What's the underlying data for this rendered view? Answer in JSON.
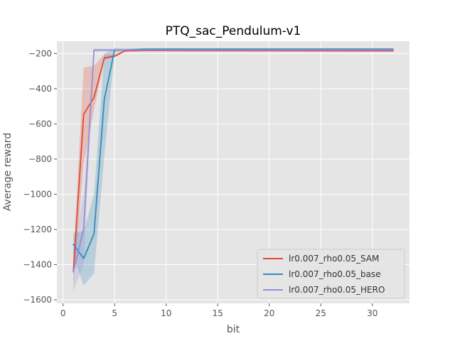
{
  "chart_data": {
    "type": "line",
    "title": "PTQ_sac_Pendulum-v1",
    "xlabel": "bit",
    "ylabel": "Average reward",
    "xlim": [
      -0.6,
      33.6
    ],
    "ylim": [
      -1620,
      -130
    ],
    "xticks": [
      0,
      5,
      10,
      15,
      20,
      25,
      30
    ],
    "yticks": [
      -1600,
      -1400,
      -1200,
      -1000,
      -800,
      -600,
      -400,
      -200
    ],
    "xtick_labels": [
      "0",
      "5",
      "10",
      "15",
      "20",
      "25",
      "30"
    ],
    "ytick_labels": [
      "−1600",
      "−1400",
      "−1200",
      "−1000",
      "−800",
      "−600",
      "−400",
      "−200"
    ],
    "grid": true,
    "legend_position": "lower-right",
    "series": [
      {
        "name": "lr0.007_rho0.05_SAM",
        "color": "#E24A33",
        "x": [
          1,
          2,
          3,
          4,
          5,
          6,
          8,
          32
        ],
        "y": [
          -1440,
          -545,
          -450,
          -225,
          -215,
          -185,
          -183,
          -185
        ],
        "lower": [
          -1520,
          -830,
          -520,
          -235,
          -222,
          -190,
          -188,
          -190
        ],
        "upper": [
          -1360,
          -280,
          -270,
          -205,
          -205,
          -180,
          -178,
          -180
        ]
      },
      {
        "name": "lr0.007_rho0.05_base",
        "color": "#348ABD",
        "x": [
          1,
          2,
          3,
          4,
          5,
          6,
          8,
          32
        ],
        "y": [
          -1285,
          -1365,
          -1225,
          -460,
          -180,
          -180,
          -175,
          -175
        ],
        "lower": [
          -1350,
          -1520,
          -1450,
          -780,
          -195,
          -185,
          -180,
          -180
        ],
        "upper": [
          -1220,
          -1210,
          -1000,
          -200,
          -170,
          -172,
          -170,
          -170
        ]
      },
      {
        "name": "lr0.007_rho0.05_HERO",
        "color": "#988ED5",
        "x": [
          1,
          2,
          3,
          4,
          5,
          6,
          8,
          32
        ],
        "y": [
          -1440,
          -1195,
          -180,
          -180,
          -180,
          -180,
          -180,
          -180
        ],
        "lower": [
          -1550,
          -1400,
          -190,
          -188,
          -186,
          -186,
          -186,
          -186
        ],
        "upper": [
          -1330,
          -990,
          -172,
          -174,
          -174,
          -174,
          -174,
          -174
        ]
      }
    ]
  }
}
